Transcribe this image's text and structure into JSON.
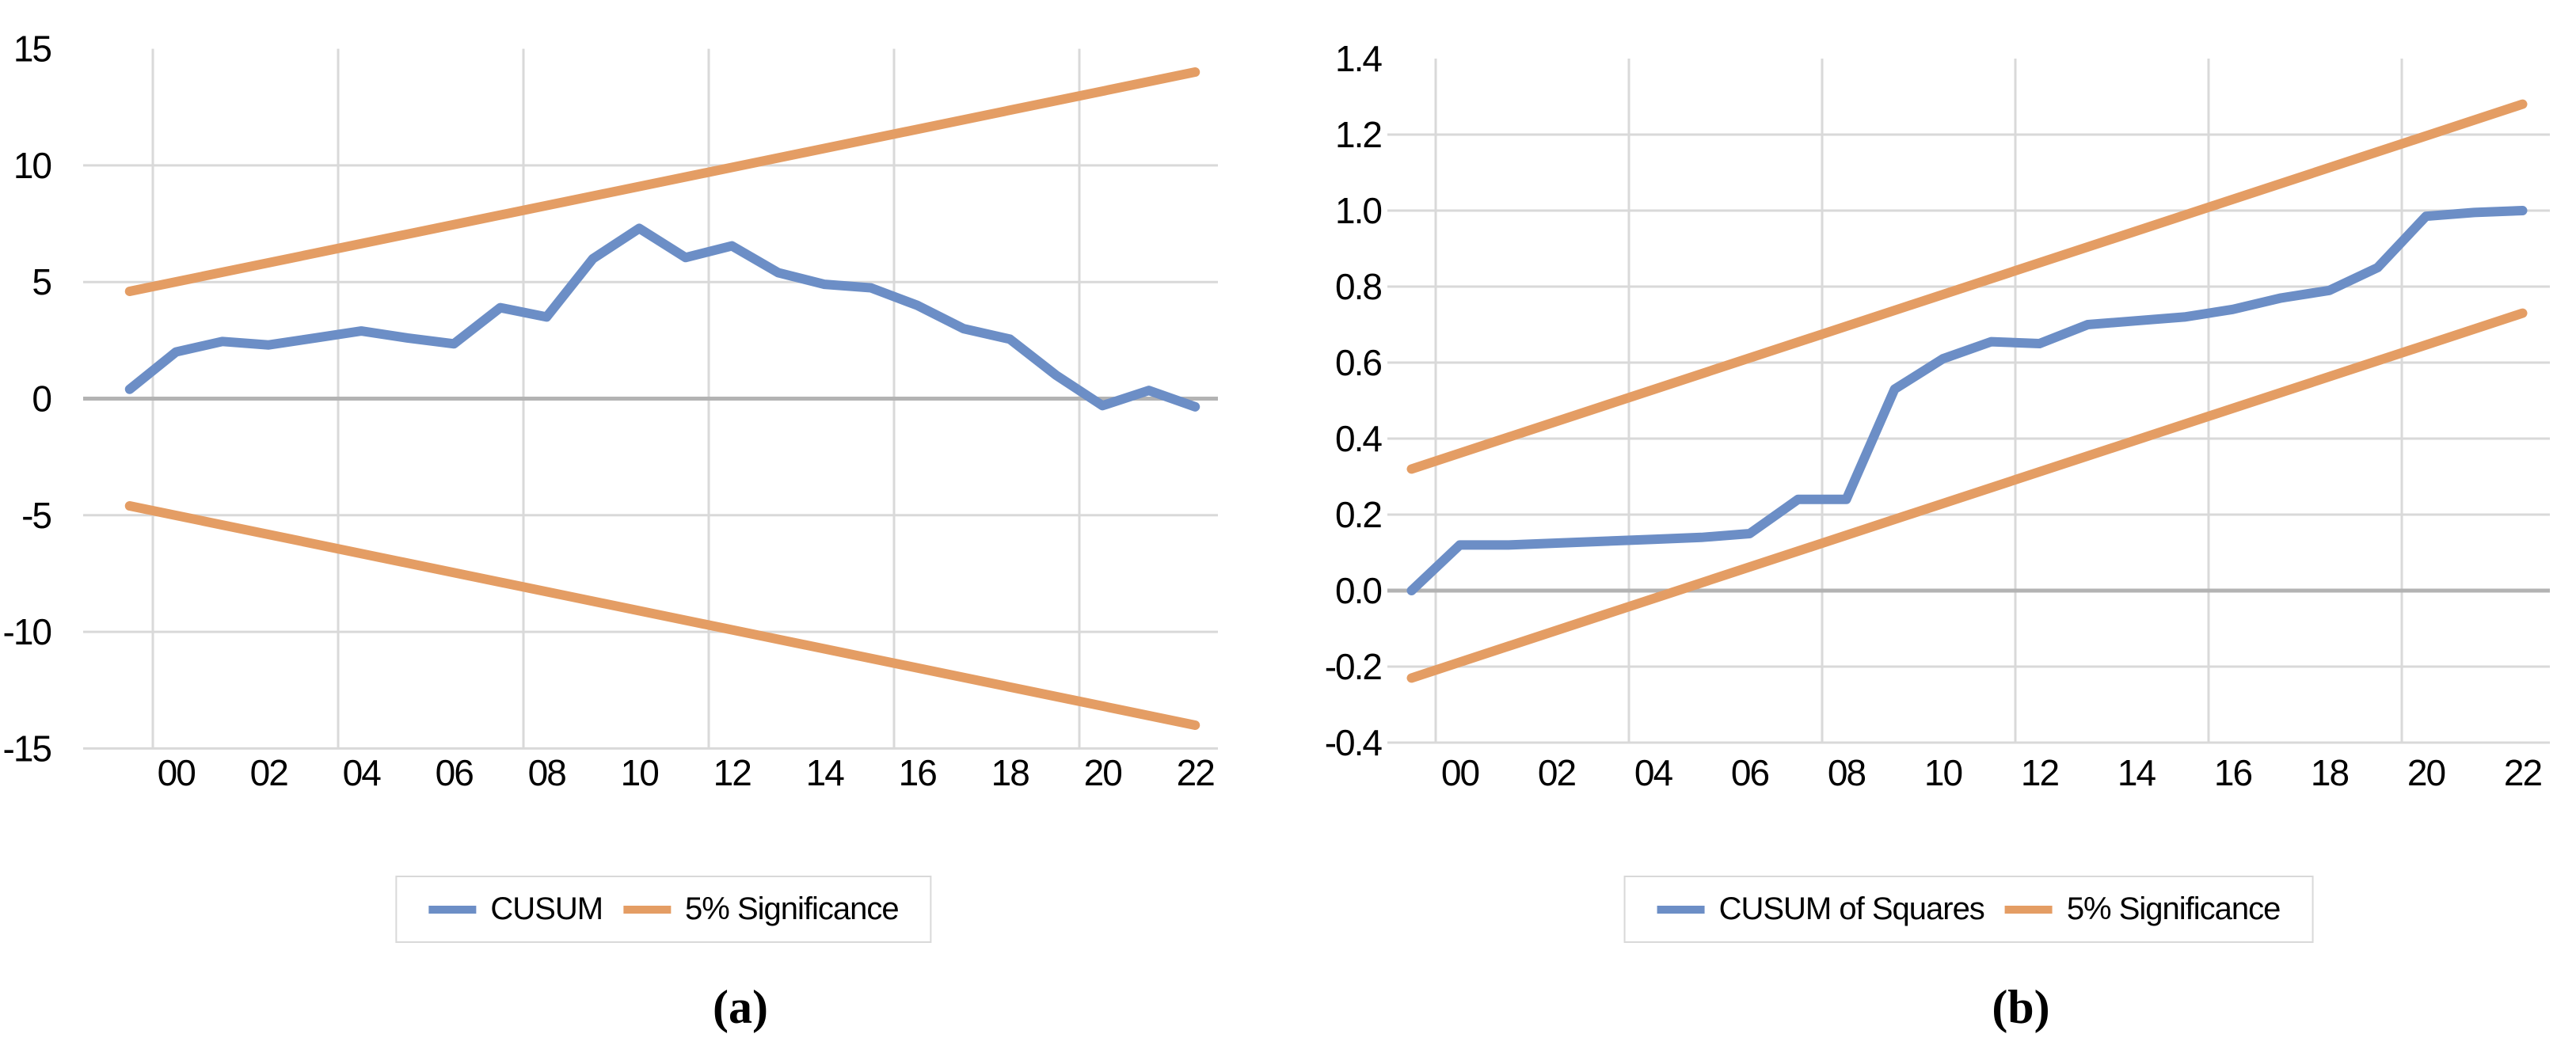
{
  "colors": {
    "cusum_blue": "#6C8EC6",
    "significance_orange": "#E49D64",
    "gridline": "#D9D9D9",
    "zero_line": "#B3B3B3",
    "legend_border": "#D9D9D9",
    "text": "#000000",
    "background": "#FFFFFF"
  },
  "chart_data": [
    {
      "id": "a",
      "type": "line",
      "title": "",
      "caption": "(a)",
      "xlabel": "",
      "ylabel": "",
      "ylim": [
        -15,
        15
      ],
      "grid": "on",
      "legend_position": "bottom",
      "x_years": [
        1999,
        2000,
        2001,
        2002,
        2003,
        2004,
        2005,
        2006,
        2007,
        2008,
        2009,
        2010,
        2011,
        2012,
        2013,
        2014,
        2015,
        2016,
        2017,
        2018,
        2019,
        2020,
        2021,
        2022
      ],
      "x_tick_labels": [
        "00",
        "02",
        "04",
        "06",
        "08",
        "10",
        "12",
        "14",
        "16",
        "18",
        "20",
        "22"
      ],
      "x_tick_years": [
        2000,
        2002,
        2004,
        2006,
        2008,
        2010,
        2012,
        2014,
        2016,
        2018,
        2020,
        2022
      ],
      "x_gridline_years": [
        1999.5,
        2003.5,
        2007.5,
        2011.5,
        2015.5,
        2019.5
      ],
      "y_tick_values": [
        15,
        10,
        5,
        0,
        -5,
        -10,
        -15
      ],
      "y_tick_labels": [
        "15",
        "10",
        "5",
        "0",
        "-5",
        "-10",
        "-15"
      ],
      "series": [
        {
          "name": "CUSUM",
          "color": "#6C8EC6",
          "values": [
            0.4,
            2.0,
            2.45,
            2.3,
            2.6,
            2.9,
            2.6,
            2.35,
            3.9,
            3.5,
            6.0,
            7.3,
            6.05,
            6.55,
            5.4,
            4.9,
            4.75,
            4.0,
            3.0,
            2.55,
            1.0,
            -0.3,
            0.35,
            -0.35
          ]
        },
        {
          "name": "5% Significance",
          "color": "#E49D64",
          "upper_band": {
            "x": [
              1999,
              2022
            ],
            "values": [
              4.6,
              14.0
            ]
          },
          "lower_band": {
            "x": [
              1999,
              2022
            ],
            "values": [
              -4.6,
              -14.0
            ]
          }
        }
      ]
    },
    {
      "id": "b",
      "type": "line",
      "title": "",
      "caption": "(b)",
      "xlabel": "",
      "ylabel": "",
      "ylim": [
        -0.4,
        1.4
      ],
      "grid": "on",
      "legend_position": "bottom",
      "x_years": [
        1999,
        2000,
        2001,
        2002,
        2003,
        2004,
        2005,
        2006,
        2007,
        2008,
        2009,
        2010,
        2011,
        2012,
        2013,
        2014,
        2015,
        2016,
        2017,
        2018,
        2019,
        2020,
        2021,
        2022
      ],
      "x_tick_labels": [
        "00",
        "02",
        "04",
        "06",
        "08",
        "10",
        "12",
        "14",
        "16",
        "18",
        "20",
        "22"
      ],
      "x_tick_years": [
        2000,
        2002,
        2004,
        2006,
        2008,
        2010,
        2012,
        2014,
        2016,
        2018,
        2020,
        2022
      ],
      "x_gridline_years": [
        1999.5,
        2003.5,
        2007.5,
        2011.5,
        2015.5,
        2019.5
      ],
      "y_tick_values": [
        1.4,
        1.2,
        1.0,
        0.8,
        0.6,
        0.4,
        0.2,
        0.0,
        -0.2,
        -0.4
      ],
      "y_tick_labels": [
        "1.4",
        "1.2",
        "1.0",
        "0.8",
        "0.6",
        "0.4",
        "0.2",
        "0.0",
        "-0.2",
        "-0.4"
      ],
      "series": [
        {
          "name": "CUSUM of Squares",
          "color": "#6C8EC6",
          "values": [
            0.0,
            0.12,
            0.12,
            0.125,
            0.13,
            0.135,
            0.14,
            0.15,
            0.24,
            0.24,
            0.53,
            0.61,
            0.655,
            0.65,
            0.7,
            0.71,
            0.72,
            0.74,
            0.77,
            0.79,
            0.85,
            0.985,
            0.995,
            1.0
          ]
        },
        {
          "name": "5% Significance",
          "color": "#E49D64",
          "upper_band": {
            "x": [
              1999,
              2022
            ],
            "values": [
              0.32,
              1.28
            ]
          },
          "lower_band": {
            "x": [
              1999,
              2022
            ],
            "values": [
              -0.23,
              0.73
            ]
          }
        }
      ]
    }
  ]
}
